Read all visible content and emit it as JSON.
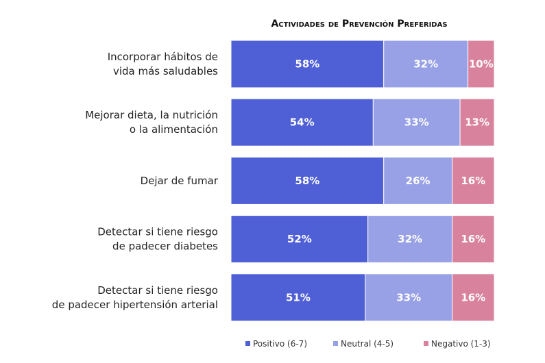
{
  "chart_data": {
    "type": "bar",
    "orientation": "horizontal",
    "stacked": true,
    "title": "Actividades de Prevención Preferidas",
    "categories": [
      [
        "Incorporar hábitos de",
        "vida más saludables"
      ],
      [
        "Mejorar dieta, la nutrición",
        "o la alimentación"
      ],
      [
        "Dejar de fumar"
      ],
      [
        "Detectar si tiene riesgo",
        "de padecer diabetes"
      ],
      [
        "Detectar si tiene riesgo",
        "de padecer hipertensión arterial"
      ]
    ],
    "series": [
      {
        "name": "Positivo (6-7)",
        "color": "#4f5fd5",
        "values": [
          58,
          54,
          58,
          52,
          51
        ],
        "labels": [
          "58%",
          "54%",
          "58%",
          "52%",
          "51%"
        ]
      },
      {
        "name": "Neutral (4-5)",
        "color": "#98a1e6",
        "values": [
          32,
          33,
          26,
          32,
          33
        ],
        "labels": [
          "32%",
          "33%",
          "26%",
          "32%",
          "33%"
        ]
      },
      {
        "name": "Negativo (1-3)",
        "color": "#d9829e",
        "values": [
          10,
          13,
          16,
          16,
          16
        ],
        "labels": [
          "10%",
          "13%",
          "16%",
          "16%",
          "16%"
        ]
      }
    ],
    "xlim": [
      0,
      100
    ],
    "legend_position": "bottom-right",
    "grid": false
  }
}
